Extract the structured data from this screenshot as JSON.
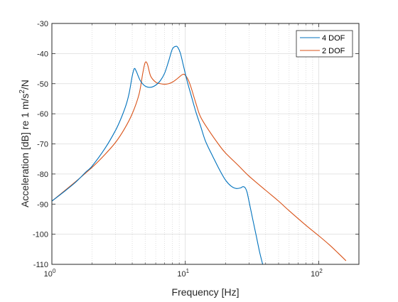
{
  "chart_data": {
    "type": "line",
    "title": "",
    "xlabel": "Frequency [Hz]",
    "ylabel_parts": [
      "Acceleration [dB] re 1 m/s",
      "2",
      "/N"
    ],
    "xscale": "log",
    "xlim": [
      1,
      200
    ],
    "ylim": [
      -110,
      -30
    ],
    "grid": "on",
    "legend": "top-right",
    "x_ticks": [
      1,
      10,
      100
    ],
    "x_tick_labels": [
      {
        "base": "10",
        "exp": "0"
      },
      {
        "base": "10",
        "exp": "1"
      },
      {
        "base": "10",
        "exp": "2"
      }
    ],
    "y_ticks": [
      -30,
      -40,
      -50,
      -60,
      -70,
      -80,
      -90,
      -100,
      -110
    ],
    "y_tick_labels": [
      "-30",
      "-40",
      "-50",
      "-60",
      "-70",
      "-80",
      "-90",
      "-100",
      "-110"
    ],
    "series": [
      {
        "name": "4 DOF",
        "color": "#0072BD",
        "x": [
          1,
          1.2,
          1.5,
          1.8,
          2,
          2.5,
          3,
          3.3,
          3.6,
          3.8,
          4.0,
          4.15,
          4.3,
          4.6,
          5,
          5.5,
          6,
          6.5,
          7,
          7.5,
          8,
          8.5,
          8.8,
          9.2,
          9.7,
          10.3,
          11,
          12,
          13,
          14,
          15,
          16,
          18,
          20,
          22,
          24,
          26,
          27,
          28,
          29,
          30,
          32,
          34,
          36,
          38
        ],
        "y": [
          -89,
          -86.3,
          -82.8,
          -79.3,
          -77.4,
          -71.5,
          -65.5,
          -61.5,
          -57,
          -53,
          -47.5,
          -45,
          -46,
          -49,
          -50.8,
          -51.2,
          -50.5,
          -49,
          -46.5,
          -42.5,
          -38.5,
          -37.6,
          -38,
          -40,
          -44.2,
          -49,
          -53.5,
          -59.4,
          -64,
          -68.5,
          -71.5,
          -74,
          -78.5,
          -82,
          -84,
          -84.8,
          -84.6,
          -84.2,
          -84.5,
          -86,
          -89,
          -95,
          -100.5,
          -105.8,
          -110
        ]
      },
      {
        "name": "2 DOF",
        "color": "#D95319",
        "x": [
          1,
          1.5,
          2,
          2.5,
          3,
          3.5,
          4,
          4.5,
          4.8,
          5.0,
          5.2,
          5.5,
          6,
          6.5,
          7,
          7.5,
          8,
          8.5,
          9,
          9.5,
          9.9,
          10.5,
          11,
          12,
          13,
          15,
          18,
          20,
          25,
          30,
          40,
          50,
          60,
          80,
          100,
          120,
          140,
          160
        ],
        "y": [
          -89,
          -82.6,
          -77.8,
          -73.5,
          -69.5,
          -65,
          -60,
          -53.5,
          -46.5,
          -43,
          -43.5,
          -47.5,
          -49.5,
          -50,
          -50.2,
          -50,
          -49.5,
          -48.7,
          -47.8,
          -47,
          -47,
          -48.7,
          -51,
          -56.5,
          -61,
          -65.5,
          -70.5,
          -73,
          -77.2,
          -80.7,
          -85.4,
          -89,
          -92.2,
          -97,
          -100.5,
          -103.5,
          -106.3,
          -108.8
        ]
      }
    ]
  }
}
